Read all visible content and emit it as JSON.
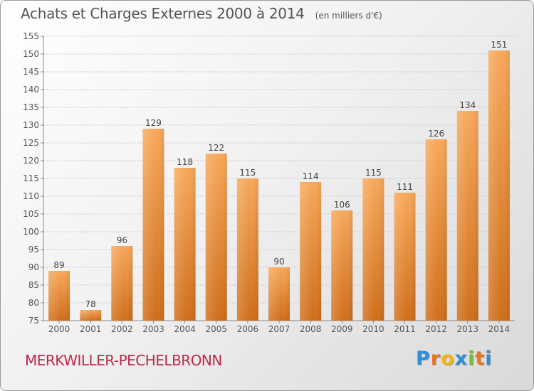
{
  "header": {
    "title": "Achats et Charges Externes 2000 à 2014",
    "unit": "(en milliers d'€)"
  },
  "footer": {
    "town": "MERKWILLER-PECHELBRONN",
    "brand_letters": [
      "P",
      "r",
      "o",
      "x",
      "i",
      "t",
      "i"
    ],
    "brand_colors": [
      "#2f8fd6",
      "#e8771f",
      "#f2b61b",
      "#2f8fd6",
      "#7cb836",
      "#e8771f",
      "#2f8fd6"
    ]
  },
  "colors": {
    "bar_light": "#f7a85a",
    "bar_dark": "#cf6e1a",
    "grid": "#c8c8c8",
    "text": "#555555"
  },
  "chart_data": {
    "type": "bar",
    "title": "Achats et Charges Externes 2000 à 2014",
    "subtitle": "(en milliers d'€)",
    "xlabel": "",
    "ylabel": "",
    "ylim": [
      75,
      155
    ],
    "yticks": [
      75,
      80,
      85,
      90,
      95,
      100,
      105,
      110,
      115,
      120,
      125,
      130,
      135,
      140,
      145,
      150,
      155
    ],
    "grid": true,
    "categories": [
      "2000",
      "2001",
      "2002",
      "2003",
      "2004",
      "2005",
      "2006",
      "2007",
      "2008",
      "2009",
      "2010",
      "2011",
      "2012",
      "2013",
      "2014"
    ],
    "values": [
      89,
      78,
      96,
      129,
      118,
      122,
      115,
      90,
      114,
      106,
      115,
      111,
      126,
      134,
      151
    ]
  }
}
